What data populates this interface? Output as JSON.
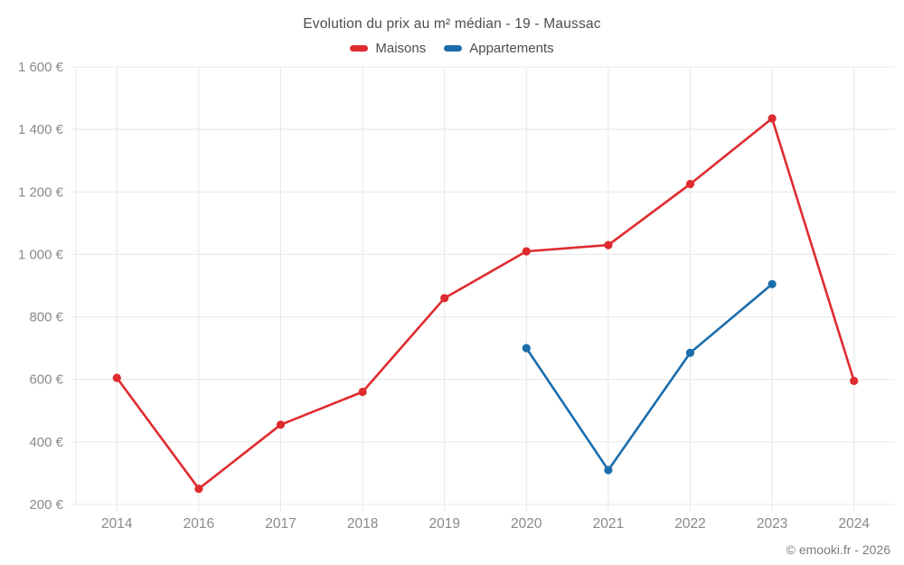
{
  "header": {
    "title": "Evolution du prix au m² médian - 19 - Maussac"
  },
  "legend": [
    {
      "label": "Maisons",
      "color": "#df2b2f"
    },
    {
      "label": "Appartements",
      "color": "#1b6dac"
    }
  ],
  "footer": {
    "credit": "© emooki.fr - 2026"
  },
  "colors": {
    "grid": "#e7e7e7",
    "axis_label": "#8a8a8a",
    "title_text": "#4d4d4d"
  },
  "chart_data": {
    "type": "line",
    "title": "Evolution du prix au m² médian - 19 - Maussac",
    "categories": [
      "2014",
      "2016",
      "2017",
      "2018",
      "2019",
      "2020",
      "2021",
      "2022",
      "2023",
      "2024"
    ],
    "series": [
      {
        "name": "Maisons",
        "color": "#df2b2f",
        "values": [
          605,
          250,
          455,
          560,
          860,
          1010,
          1030,
          1225,
          1435,
          595
        ]
      },
      {
        "name": "Appartements",
        "color": "#1b6dac",
        "values": [
          null,
          null,
          null,
          null,
          null,
          700,
          310,
          685,
          905,
          null
        ]
      }
    ],
    "xlabel": "",
    "ylabel": "",
    "ylim": [
      200,
      1600
    ],
    "y_ticks": [
      {
        "value": 200,
        "label": "200 €"
      },
      {
        "value": 400,
        "label": "400 €"
      },
      {
        "value": 600,
        "label": "600 €"
      },
      {
        "value": 800,
        "label": "800 €"
      },
      {
        "value": 1000,
        "label": "1 000 €"
      },
      {
        "value": 1200,
        "label": "1 200 €"
      },
      {
        "value": 1400,
        "label": "1 400 €"
      },
      {
        "value": 1600,
        "label": "1 600 €"
      }
    ],
    "grid": true,
    "legend_position": "top"
  }
}
